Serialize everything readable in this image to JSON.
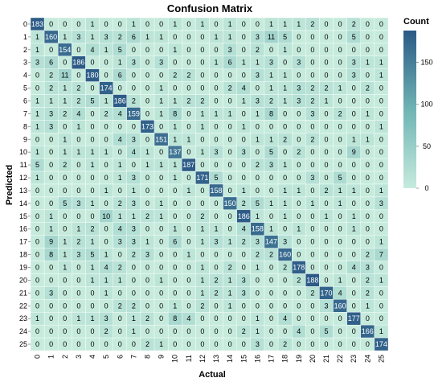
{
  "chart_data": {
    "type": "heatmap",
    "title": "Confusion Matrix",
    "xlabel": "Actual",
    "ylabel": "Predicted",
    "x_categories": [
      "0",
      "1",
      "2",
      "3",
      "4",
      "5",
      "6",
      "7",
      "8",
      "9",
      "10",
      "11",
      "12",
      "13",
      "14",
      "15",
      "16",
      "17",
      "18",
      "19",
      "20",
      "21",
      "22",
      "23",
      "24",
      "25"
    ],
    "y_categories": [
      "0",
      "1",
      "2",
      "3",
      "4",
      "5",
      "6",
      "7",
      "8",
      "9",
      "10",
      "11",
      "12",
      "13",
      "14",
      "15",
      "16",
      "17",
      "18",
      "19",
      "20",
      "21",
      "22",
      "23",
      "24",
      "25"
    ],
    "values": [
      [
        183,
        0,
        0,
        0,
        1,
        0,
        0,
        1,
        0,
        0,
        1,
        0,
        1,
        0,
        1,
        0,
        0,
        1,
        1,
        1,
        2,
        0,
        0,
        2,
        0,
        0
      ],
      [
        1,
        160,
        1,
        3,
        1,
        3,
        2,
        6,
        1,
        1,
        0,
        0,
        0,
        1,
        1,
        0,
        3,
        11,
        5,
        0,
        0,
        0,
        0,
        5,
        0,
        0
      ],
      [
        1,
        0,
        154,
        0,
        4,
        1,
        5,
        0,
        0,
        0,
        1,
        0,
        0,
        0,
        3,
        0,
        2,
        0,
        1,
        0,
        0,
        0,
        0,
        0,
        0,
        0
      ],
      [
        3,
        6,
        0,
        186,
        0,
        0,
        1,
        3,
        0,
        3,
        0,
        0,
        0,
        1,
        6,
        1,
        1,
        3,
        0,
        3,
        0,
        0,
        0,
        3,
        1,
        1
      ],
      [
        0,
        2,
        11,
        0,
        180,
        0,
        6,
        0,
        0,
        0,
        2,
        2,
        0,
        0,
        0,
        0,
        3,
        1,
        1,
        0,
        0,
        0,
        0,
        3,
        0,
        1
      ],
      [
        0,
        2,
        1,
        2,
        0,
        174,
        0,
        0,
        0,
        1,
        0,
        0,
        0,
        0,
        2,
        4,
        0,
        1,
        1,
        3,
        2,
        2,
        1,
        0,
        2,
        0
      ],
      [
        1,
        1,
        1,
        2,
        5,
        1,
        186,
        2,
        0,
        1,
        1,
        2,
        2,
        0,
        0,
        1,
        3,
        2,
        1,
        3,
        2,
        1,
        0,
        0,
        0,
        0
      ],
      [
        1,
        3,
        2,
        4,
        0,
        2,
        4,
        159,
        0,
        1,
        8,
        0,
        1,
        1,
        1,
        0,
        1,
        8,
        0,
        0,
        3,
        0,
        2,
        0,
        1,
        0
      ],
      [
        1,
        3,
        0,
        1,
        0,
        0,
        0,
        0,
        173,
        0,
        1,
        0,
        1,
        0,
        0,
        1,
        0,
        0,
        0,
        0,
        0,
        0,
        0,
        0,
        0,
        1
      ],
      [
        0,
        0,
        1,
        0,
        0,
        0,
        4,
        3,
        0,
        151,
        1,
        1,
        0,
        0,
        0,
        0,
        1,
        1,
        2,
        0,
        2,
        0,
        0,
        1,
        1,
        0
      ],
      [
        1,
        0,
        1,
        1,
        1,
        1,
        0,
        4,
        1,
        0,
        137,
        0,
        1,
        3,
        0,
        3,
        0,
        5,
        0,
        2,
        0,
        0,
        0,
        9,
        0,
        0
      ],
      [
        5,
        0,
        2,
        0,
        1,
        0,
        1,
        0,
        1,
        1,
        1,
        187,
        0,
        0,
        0,
        0,
        2,
        3,
        1,
        0,
        0,
        0,
        0,
        0,
        0,
        0
      ],
      [
        1,
        0,
        0,
        0,
        0,
        0,
        1,
        3,
        0,
        0,
        1,
        0,
        171,
        5,
        0,
        0,
        0,
        0,
        0,
        0,
        3,
        0,
        5,
        0,
        0,
        0
      ],
      [
        0,
        0,
        0,
        0,
        0,
        1,
        0,
        1,
        0,
        0,
        0,
        1,
        0,
        158,
        0,
        1,
        0,
        0,
        1,
        1,
        0,
        2,
        1,
        1,
        0,
        1
      ],
      [
        0,
        0,
        5,
        3,
        1,
        0,
        2,
        3,
        0,
        1,
        0,
        0,
        0,
        0,
        150,
        2,
        5,
        1,
        1,
        0,
        1,
        0,
        1,
        0,
        0,
        3
      ],
      [
        0,
        1,
        0,
        0,
        0,
        10,
        1,
        1,
        2,
        1,
        0,
        0,
        2,
        0,
        0,
        186,
        1,
        0,
        1,
        0,
        0,
        1,
        0,
        1,
        0,
        0
      ],
      [
        0,
        1,
        0,
        1,
        2,
        0,
        4,
        3,
        0,
        0,
        1,
        0,
        1,
        1,
        0,
        4,
        158,
        1,
        0,
        1,
        0,
        0,
        0,
        1,
        0,
        0
      ],
      [
        0,
        9,
        1,
        2,
        1,
        0,
        3,
        3,
        1,
        0,
        6,
        0,
        1,
        3,
        1,
        2,
        3,
        147,
        3,
        0,
        0,
        0,
        0,
        0,
        0,
        1
      ],
      [
        0,
        8,
        1,
        3,
        5,
        1,
        0,
        2,
        3,
        0,
        0,
        1,
        0,
        0,
        0,
        0,
        2,
        2,
        160,
        0,
        0,
        0,
        0,
        0,
        2,
        7
      ],
      [
        0,
        0,
        1,
        0,
        1,
        4,
        2,
        0,
        0,
        0,
        0,
        0,
        1,
        0,
        2,
        0,
        1,
        0,
        2,
        178,
        0,
        0,
        0,
        4,
        3,
        0
      ],
      [
        0,
        0,
        0,
        0,
        1,
        1,
        1,
        0,
        0,
        1,
        0,
        0,
        1,
        2,
        1,
        3,
        0,
        0,
        0,
        2,
        188,
        0,
        1,
        0,
        2,
        1
      ],
      [
        0,
        3,
        0,
        0,
        0,
        1,
        0,
        0,
        0,
        0,
        0,
        0,
        1,
        2,
        1,
        3,
        0,
        0,
        0,
        0,
        2,
        170,
        4,
        0,
        2,
        0
      ],
      [
        0,
        0,
        0,
        0,
        0,
        0,
        2,
        2,
        0,
        0,
        1,
        0,
        2,
        0,
        1,
        0,
        0,
        0,
        0,
        0,
        0,
        3,
        160,
        0,
        1,
        0
      ],
      [
        1,
        0,
        0,
        1,
        1,
        3,
        0,
        1,
        2,
        0,
        8,
        4,
        0,
        0,
        0,
        0,
        1,
        0,
        4,
        0,
        0,
        0,
        0,
        177,
        0,
        0
      ],
      [
        0,
        0,
        0,
        0,
        0,
        2,
        0,
        1,
        0,
        0,
        0,
        0,
        0,
        0,
        0,
        2,
        1,
        0,
        0,
        4,
        0,
        5,
        0,
        0,
        166,
        1
      ],
      [
        0,
        0,
        0,
        0,
        0,
        0,
        0,
        0,
        2,
        1,
        0,
        0,
        0,
        0,
        0,
        0,
        3,
        0,
        2,
        0,
        0,
        0,
        0,
        0,
        0,
        174
      ]
    ],
    "colorbar": {
      "title": "Count",
      "ticks": [
        0,
        50,
        100,
        150
      ],
      "range": [
        0,
        188
      ],
      "color_low": "#c6ebdd",
      "color_high": "#2b5a86"
    },
    "grid": false,
    "legend_position": "right"
  }
}
